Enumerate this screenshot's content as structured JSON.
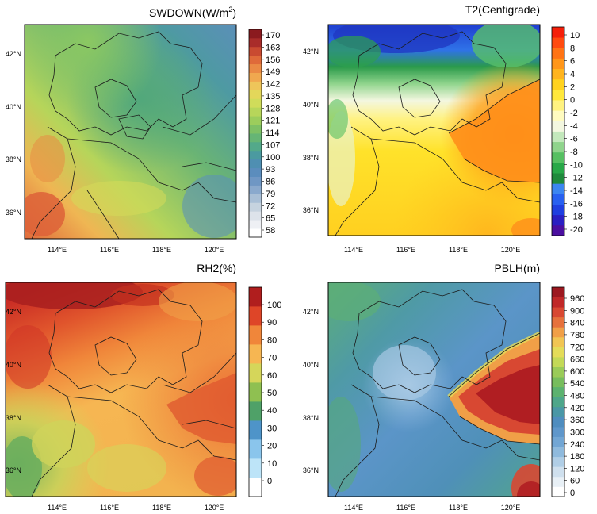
{
  "figure": {
    "panels": [
      {
        "id": "swdown",
        "title": "SWDOWN(W/m",
        "title_sup": "2",
        "title_tail": ")",
        "lat_ticks": [
          "42°N",
          "40°N",
          "38°N",
          "36°N"
        ],
        "lon_ticks": [
          "114°E",
          "116°E",
          "118°E",
          "120°E"
        ],
        "colorbar": {
          "labels": [
            "170",
            "163",
            "156",
            "149",
            "142",
            "135",
            "128",
            "121",
            "114",
            "107",
            "100",
            "93",
            "86",
            "79",
            "72",
            "65",
            "58"
          ],
          "colors": [
            "#ffffff",
            "#eef0f4",
            "#dde3ea",
            "#c6d3df",
            "#a9bfd6",
            "#8aa9cd",
            "#6f97c4",
            "#5b8dbd",
            "#4f8fb2",
            "#4b9aa0",
            "#53a98a",
            "#66b575",
            "#7ec065",
            "#9ccd5c",
            "#b7d65a",
            "#d0dc5a",
            "#e3d75a",
            "#eec55a",
            "#f0a84f",
            "#ea8a45",
            "#df6a3a",
            "#c94a31",
            "#a92c2a",
            "#8b1a1f"
          ]
        }
      },
      {
        "id": "t2",
        "title": "T2(Centigrade)",
        "lat_ticks": [
          "42°N",
          "40°N",
          "38°N",
          "36°N"
        ],
        "lon_ticks": [
          "114°E",
          "116°E",
          "118°E",
          "120°E"
        ],
        "colorbar": {
          "labels": [
            "10",
            "8",
            "6",
            "4",
            "2",
            "0",
            "-2",
            "-4",
            "-6",
            "-8",
            "-10",
            "-12",
            "-14",
            "-16",
            "-18",
            "-20"
          ],
          "colors": [
            "#4b0fa0",
            "#2a1fc2",
            "#1f3fe0",
            "#2860f0",
            "#3c86f0",
            "#1f8a3c",
            "#28a848",
            "#56c062",
            "#8fd48c",
            "#c3e8bc",
            "#f3f7e0",
            "#fffbc0",
            "#fff280",
            "#ffe83c",
            "#ffd21e",
            "#ffb41e",
            "#ff9619",
            "#ff7314",
            "#ff4a0f",
            "#f51f0a"
          ]
        }
      },
      {
        "id": "rh2",
        "title": "RH2(%)",
        "lat_ticks": [
          "42°N",
          "40°N",
          "38°N",
          "36°N"
        ],
        "lon_ticks": [
          "114°E",
          "116°E",
          "118°E",
          "120°E"
        ],
        "colorbar": {
          "labels": [
            "100",
            "90",
            "80",
            "70",
            "60",
            "50",
            "40",
            "30",
            "20",
            "10",
            "0"
          ],
          "colors": [
            "#ffffff",
            "#bde4f8",
            "#8ac5ec",
            "#4e94c9",
            "#4fa168",
            "#8fc051",
            "#d5d65a",
            "#f6b652",
            "#f0863a",
            "#de4528",
            "#b01e1e"
          ]
        }
      },
      {
        "id": "pblh",
        "title": "PBLH(m)",
        "lat_ticks": [
          "42°N",
          "40°N",
          "38°N",
          "36°N"
        ],
        "lon_ticks": [
          "114°E",
          "116°E",
          "118°E",
          "120°E"
        ],
        "colorbar": {
          "labels": [
            "960",
            "900",
            "840",
            "780",
            "720",
            "660",
            "600",
            "540",
            "480",
            "420",
            "360",
            "300",
            "240",
            "180",
            "120",
            "60",
            "0"
          ],
          "colors": [
            "#ffffff",
            "#e8f0f6",
            "#cfe0ee",
            "#b0cee6",
            "#8fbadd",
            "#72a6d4",
            "#5f97cb",
            "#4f8dbf",
            "#4a97a6",
            "#4ea68a",
            "#5cb26f",
            "#77bd5d",
            "#9acb58",
            "#c3d957",
            "#e4dc59",
            "#f1c553",
            "#f09f47",
            "#e6713c",
            "#d84832",
            "#c02828",
            "#9c1820"
          ]
        }
      }
    ],
    "colors": {
      "frame": "#000000",
      "boundary": "#1c1c1c",
      "coast": "#2a2a2a"
    }
  }
}
